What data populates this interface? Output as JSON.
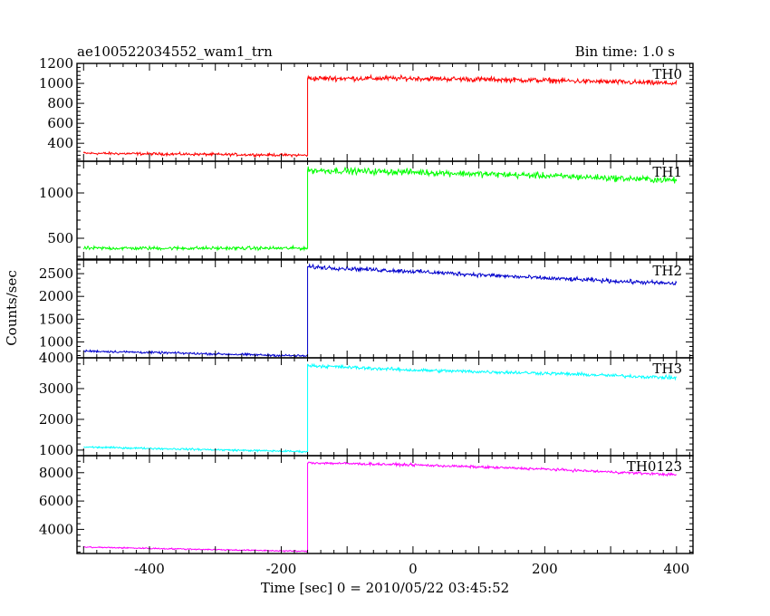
{
  "header": {
    "left_title": "ae100522034552_wam1_trn",
    "right_title": "Bin time: 1.0 s"
  },
  "chart_data": {
    "type": "line",
    "title": "ae100522034552_wam1_trn",
    "subtitle": "Bin time: 1.0 s",
    "xlabel": "Time [sec] 0 = 2010/05/22 03:45:52",
    "ylabel": "Counts/sec",
    "xlim": [
      -510,
      425
    ],
    "x_ticks": [
      -400,
      -200,
      0,
      200,
      400
    ],
    "step_time": -160,
    "panels": [
      {
        "name": "TH0",
        "color": "#ff0000",
        "ylim": [
          220,
          1200
        ],
        "y_ticks": [
          400,
          600,
          800,
          1000,
          1200
        ],
        "x": [
          -500,
          -160,
          -160,
          0,
          200,
          400
        ],
        "values": [
          300,
          280,
          1050,
          1050,
          1030,
          1000
        ],
        "noise": 25
      },
      {
        "name": "TH1",
        "color": "#00ff00",
        "ylim": [
          270,
          1350
        ],
        "y_ticks": [
          500,
          1000
        ],
        "x": [
          -500,
          -160,
          -160,
          0,
          200,
          400
        ],
        "values": [
          390,
          390,
          1250,
          1230,
          1190,
          1140
        ],
        "noise": 35
      },
      {
        "name": "TH2",
        "color": "#0000cc",
        "ylim": [
          650,
          2800
        ],
        "y_ticks": [
          1000,
          1500,
          2000,
          2500
        ],
        "x": [
          -500,
          -160,
          -160,
          0,
          200,
          400
        ],
        "values": [
          800,
          690,
          2650,
          2550,
          2400,
          2280
        ],
        "noise": 45
      },
      {
        "name": "TH3",
        "color": "#00ffff",
        "ylim": [
          820,
          4000
        ],
        "y_ticks": [
          1000,
          2000,
          3000,
          4000
        ],
        "x": [
          -500,
          -160,
          -160,
          0,
          200,
          400
        ],
        "values": [
          1100,
          950,
          3750,
          3600,
          3500,
          3350
        ],
        "noise": 55
      },
      {
        "name": "TH0123",
        "color": "#ff00ff",
        "ylim": [
          2300,
          9200
        ],
        "y_ticks": [
          4000,
          6000,
          8000
        ],
        "x": [
          -500,
          -160,
          -160,
          0,
          200,
          400
        ],
        "values": [
          2750,
          2450,
          8700,
          8550,
          8250,
          7850
        ],
        "noise": 90
      }
    ]
  }
}
